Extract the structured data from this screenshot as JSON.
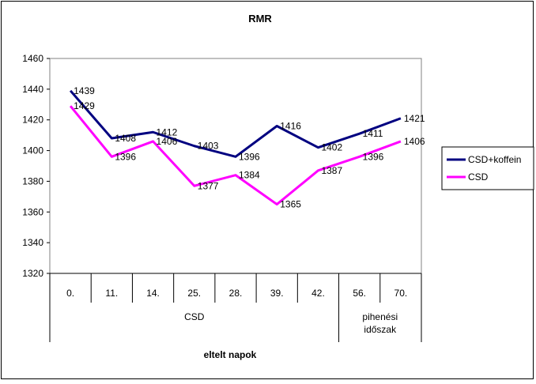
{
  "chart_data": {
    "type": "line",
    "title": "RMR",
    "xlabel": "eltelt napok",
    "ylabel": "",
    "categories": [
      "0.",
      "11.",
      "14.",
      "25.",
      "28.",
      "39.",
      "42.",
      "56.",
      "70."
    ],
    "groups": [
      {
        "label": "CSD",
        "span": [
          0,
          6
        ]
      },
      {
        "label": "pihenési időszak",
        "span": [
          7,
          8
        ]
      }
    ],
    "ylim": [
      1320,
      1460
    ],
    "yticks": [
      1320,
      1340,
      1360,
      1380,
      1400,
      1420,
      1440,
      1460
    ],
    "series": [
      {
        "name": "CSD+koffein",
        "color": "#000080",
        "values": [
          1439,
          1408,
          1412,
          1403,
          1396,
          1416,
          1402,
          1411,
          1421
        ]
      },
      {
        "name": "CSD",
        "color": "#ff00ff",
        "values": [
          1429,
          1396,
          1406,
          1377,
          1384,
          1365,
          1387,
          1396,
          1406
        ]
      }
    ],
    "grid": false,
    "legend": "right"
  }
}
